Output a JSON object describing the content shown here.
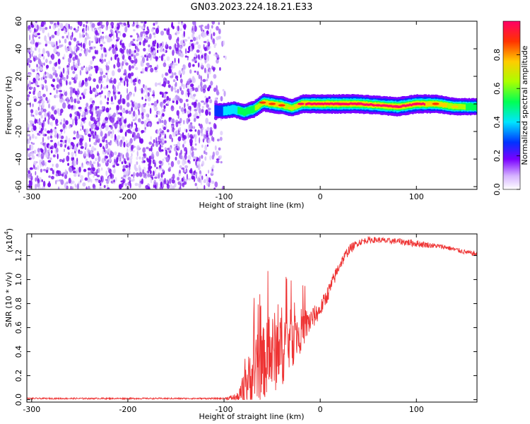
{
  "figure": {
    "title": "GN03.2023.224.18.21.E33"
  },
  "chart_data": [
    {
      "type": "heatmap",
      "xlabel": "Height of straight line (km)",
      "ylabel": "Frequency (Hz)",
      "xlim": [
        -305,
        163
      ],
      "ylim": [
        -62,
        60
      ],
      "xticks": [
        -300,
        -200,
        -100,
        0,
        100
      ],
      "yticks": [
        -60,
        -40,
        -20,
        0,
        20,
        40,
        60
      ],
      "noise_region_x": [
        -305,
        -95
      ],
      "ridge": {
        "x": [
          -110,
          -100,
          -90,
          -80,
          -70,
          -60,
          -50,
          -40,
          -30,
          -20,
          0,
          20,
          40,
          60,
          80,
          100,
          120,
          140,
          163
        ],
        "freq": [
          -5,
          -5,
          -4,
          -6,
          -4,
          1,
          0,
          -1,
          -3,
          0,
          0,
          0,
          0,
          -1,
          -2,
          0,
          0,
          -2,
          -2
        ],
        "amp": [
          0.2,
          0.35,
          0.4,
          0.5,
          0.55,
          0.7,
          0.75,
          0.7,
          0.6,
          0.8,
          0.85,
          0.9,
          0.85,
          0.8,
          0.9,
          0.85,
          0.75,
          0.6,
          0.5
        ]
      },
      "colorbar": {
        "label": "Normalized spectral amplitude",
        "range": [
          0,
          1
        ],
        "ticks": [
          0.0,
          0.2,
          0.4,
          0.6,
          0.8
        ]
      },
      "grid": false
    },
    {
      "type": "line",
      "xlabel": "Height of straight line (km)",
      "ylabel": "SNR (10 * v/v)",
      "y_multiplier": "(x10",
      "y_exponent": "4",
      "ylabel_unit": ")",
      "xlim": [
        -305,
        163
      ],
      "ylim": [
        -0.02,
        1.38
      ],
      "xticks": [
        -300,
        -200,
        -100,
        0,
        100
      ],
      "yticks": [
        0.0,
        0.2,
        0.4,
        0.6,
        0.8,
        1.0,
        1.2
      ],
      "series": [
        {
          "color": "#ee3333",
          "x": [
            -305,
            -200,
            -100,
            -85,
            -80,
            -70,
            -60,
            -50,
            -40,
            -30,
            -20,
            -10,
            0,
            10,
            20,
            30,
            40,
            50,
            60,
            70,
            80,
            90,
            100,
            110,
            120,
            130,
            140,
            150,
            163
          ],
          "y": [
            0.01,
            0.01,
            0.01,
            0.02,
            0.08,
            0.22,
            0.3,
            0.38,
            0.45,
            0.5,
            0.58,
            0.66,
            0.75,
            0.92,
            1.12,
            1.25,
            1.31,
            1.33,
            1.33,
            1.32,
            1.32,
            1.31,
            1.3,
            1.29,
            1.28,
            1.27,
            1.25,
            1.23,
            1.21
          ],
          "noise": [
            0.006,
            0.006,
            0.006,
            0.04,
            0.14,
            0.28,
            0.3,
            0.34,
            0.34,
            0.25,
            0.18,
            0.1,
            0.07,
            0.07,
            0.05,
            0.04,
            0.03,
            0.025,
            0.025,
            0.025,
            0.025,
            0.03,
            0.03,
            0.025,
            0.02,
            0.02,
            0.02,
            0.02,
            0.02
          ]
        }
      ],
      "grid": false
    }
  ]
}
